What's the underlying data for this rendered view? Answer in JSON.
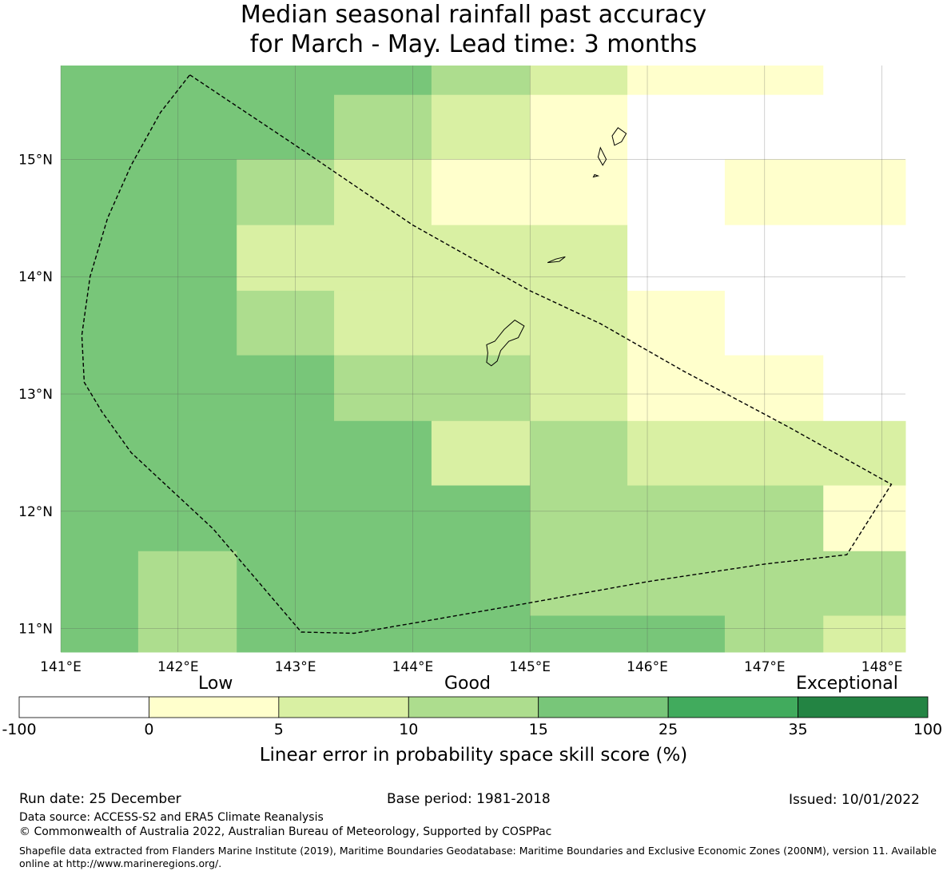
{
  "title": {
    "line1": "Median seasonal rainfall past accuracy",
    "line2": "for March - May. Lead time: 3 months"
  },
  "map": {
    "lon_labels": [
      "141°E",
      "142°E",
      "143°E",
      "144°E",
      "145°E",
      "146°E",
      "147°E",
      "148°E"
    ],
    "lat_labels": [
      "15°N",
      "14°N",
      "13°N",
      "12°N",
      "11°N"
    ],
    "lon_range": [
      141.0,
      148.2
    ],
    "lat_range": [
      10.8,
      15.8
    ],
    "legend_colors": [
      "#ffffff",
      "#ffffcc",
      "#d9f0a3",
      "#addd8e",
      "#78c679",
      "#41ab5d",
      "#238443"
    ],
    "grid_rows": [
      {
        "lat_top": 15.8,
        "lat_bottom": 15.55,
        "cells": [
          [
            141.0,
            144.16,
            4
          ],
          [
            144.16,
            145.0,
            3
          ],
          [
            145.0,
            145.83,
            2
          ],
          [
            145.83,
            147.5,
            1
          ],
          [
            147.5,
            148.2,
            0
          ]
        ]
      },
      {
        "lat_top": 15.55,
        "lat_bottom": 15.0,
        "cells": [
          [
            141.0,
            143.33,
            4
          ],
          [
            143.33,
            144.16,
            3
          ],
          [
            144.16,
            145.0,
            2
          ],
          [
            145.0,
            145.83,
            1
          ],
          [
            145.83,
            148.2,
            0
          ]
        ]
      },
      {
        "lat_top": 15.0,
        "lat_bottom": 14.44,
        "cells": [
          [
            141.0,
            142.5,
            4
          ],
          [
            142.5,
            143.33,
            3
          ],
          [
            143.33,
            144.16,
            2
          ],
          [
            144.16,
            145.83,
            1
          ],
          [
            145.83,
            146.66,
            0
          ],
          [
            146.66,
            148.2,
            1
          ]
        ]
      },
      {
        "lat_top": 14.44,
        "lat_bottom": 13.88,
        "cells": [
          [
            141.0,
            142.5,
            4
          ],
          [
            142.5,
            145.83,
            2
          ],
          [
            145.83,
            148.2,
            0
          ]
        ]
      },
      {
        "lat_top": 13.88,
        "lat_bottom": 13.33,
        "cells": [
          [
            141.0,
            142.5,
            4
          ],
          [
            142.5,
            143.33,
            3
          ],
          [
            143.33,
            145.83,
            2
          ],
          [
            145.83,
            146.66,
            1
          ],
          [
            146.66,
            148.2,
            0
          ]
        ]
      },
      {
        "lat_top": 13.33,
        "lat_bottom": 12.77,
        "cells": [
          [
            141.0,
            143.33,
            4
          ],
          [
            143.33,
            145.0,
            3
          ],
          [
            145.0,
            145.83,
            2
          ],
          [
            145.83,
            147.5,
            1
          ],
          [
            147.5,
            148.2,
            0
          ]
        ]
      },
      {
        "lat_top": 12.77,
        "lat_bottom": 12.22,
        "cells": [
          [
            141.0,
            144.16,
            4
          ],
          [
            144.16,
            145.0,
            2
          ],
          [
            145.0,
            145.83,
            3
          ],
          [
            145.83,
            148.2,
            2
          ]
        ]
      },
      {
        "lat_top": 12.22,
        "lat_bottom": 11.66,
        "cells": [
          [
            141.0,
            145.0,
            4
          ],
          [
            145.0,
            147.5,
            3
          ],
          [
            147.5,
            148.2,
            1
          ]
        ]
      },
      {
        "lat_top": 11.66,
        "lat_bottom": 11.11,
        "cells": [
          [
            141.0,
            141.66,
            4
          ],
          [
            141.66,
            142.5,
            3
          ],
          [
            142.5,
            145.0,
            4
          ],
          [
            145.0,
            148.2,
            3
          ]
        ]
      },
      {
        "lat_top": 11.11,
        "lat_bottom": 10.8,
        "cells": [
          [
            141.0,
            141.66,
            4
          ],
          [
            141.66,
            142.5,
            3
          ],
          [
            142.5,
            146.66,
            4
          ],
          [
            146.66,
            147.5,
            3
          ],
          [
            147.5,
            148.2,
            2
          ]
        ]
      }
    ],
    "eez_boundary": [
      [
        142.1,
        15.72
      ],
      [
        143.0,
        15.12
      ],
      [
        144.0,
        14.44
      ],
      [
        145.0,
        13.88
      ],
      [
        145.6,
        13.6
      ],
      [
        146.3,
        13.2
      ],
      [
        147.2,
        12.72
      ],
      [
        148.08,
        12.23
      ],
      [
        147.7,
        11.63
      ],
      [
        147.0,
        11.55
      ],
      [
        146.0,
        11.4
      ],
      [
        145.0,
        11.22
      ],
      [
        144.2,
        11.08
      ],
      [
        143.5,
        10.96
      ],
      [
        143.05,
        10.97
      ],
      [
        142.3,
        11.85
      ],
      [
        141.6,
        12.5
      ],
      [
        141.35,
        12.85
      ],
      [
        141.2,
        13.1
      ],
      [
        141.18,
        13.5
      ],
      [
        141.25,
        14.0
      ],
      [
        141.4,
        14.5
      ],
      [
        141.6,
        14.95
      ],
      [
        141.85,
        15.4
      ],
      [
        142.1,
        15.72
      ]
    ],
    "islands": [
      [
        [
          144.87,
          13.63
        ],
        [
          144.95,
          13.58
        ],
        [
          144.9,
          13.48
        ],
        [
          144.82,
          13.45
        ],
        [
          144.75,
          13.37
        ],
        [
          144.72,
          13.28
        ],
        [
          144.67,
          13.24
        ],
        [
          144.63,
          13.27
        ],
        [
          144.64,
          13.35
        ],
        [
          144.63,
          13.42
        ],
        [
          144.7,
          13.45
        ],
        [
          144.78,
          13.55
        ],
        [
          144.87,
          13.63
        ]
      ],
      [
        [
          145.15,
          14.12
        ],
        [
          145.22,
          14.15
        ],
        [
          145.3,
          14.17
        ],
        [
          145.25,
          14.13
        ],
        [
          145.15,
          14.12
        ]
      ],
      [
        [
          145.7,
          15.2
        ],
        [
          145.75,
          15.27
        ],
        [
          145.82,
          15.22
        ],
        [
          145.78,
          15.15
        ],
        [
          145.72,
          15.12
        ],
        [
          145.7,
          15.2
        ]
      ],
      [
        [
          145.6,
          15.1
        ],
        [
          145.65,
          15.0
        ],
        [
          145.62,
          14.95
        ],
        [
          145.58,
          15.02
        ],
        [
          145.6,
          15.1
        ]
      ],
      [
        [
          145.55,
          14.87
        ],
        [
          145.58,
          14.86
        ],
        [
          145.54,
          14.85
        ],
        [
          145.55,
          14.87
        ]
      ]
    ]
  },
  "colorbar": {
    "category_labels": [
      "Low",
      "Good",
      "Exceptional"
    ],
    "ticks": [
      "-100",
      "0",
      "5",
      "10",
      "15",
      "25",
      "35",
      "100"
    ],
    "colors": [
      "#ffffff",
      "#ffffcc",
      "#d9f0a3",
      "#addd8e",
      "#78c679",
      "#41ab5d",
      "#238443"
    ],
    "title": "Linear error in probability space skill score (%)"
  },
  "footer": {
    "run_date": "Run date: 25 December",
    "base_period": "Base period: 1981-2018",
    "issued": "Issued: 10/01/2022",
    "data_source": "Data source: ACCESS-S2 and ERA5 Climate Reanalysis",
    "copyright": "© Commonwealth of Australia 2022, Australian Bureau of Meteorology, Supported by COSPPac",
    "shapefile": "Shapefile data extracted from Flanders Marine Institute (2019), Maritime Boundaries Geodatabase: Maritime Boundaries and Exclusive Economic Zones (200NM), version 11. Available online at http://www.marineregions.org/."
  }
}
